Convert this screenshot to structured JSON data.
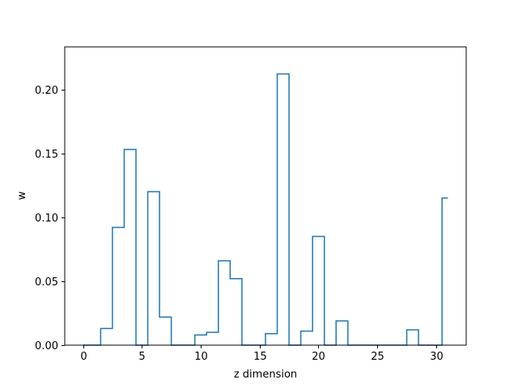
{
  "chart_data": {
    "type": "line",
    "style": "step-mid",
    "x": [
      0,
      1,
      2,
      3,
      4,
      5,
      6,
      7,
      8,
      9,
      10,
      11,
      12,
      13,
      14,
      15,
      16,
      17,
      18,
      19,
      20,
      21,
      22,
      23,
      24,
      25,
      26,
      27,
      28,
      29,
      30,
      31
    ],
    "series": [
      {
        "color": "#1f77b4",
        "values": [
          0.0,
          0.0,
          0.013,
          0.092,
          0.153,
          0.0,
          0.12,
          0.022,
          0.0,
          0.0,
          0.008,
          0.01,
          0.066,
          0.052,
          0.0,
          0.0,
          0.009,
          0.212,
          0.0,
          0.011,
          0.085,
          0.0,
          0.019,
          0.0,
          0.0,
          0.0,
          0.0,
          0.0,
          0.012,
          0.0,
          0.0,
          0.115
        ]
      }
    ],
    "xlabel": "z dimension",
    "ylabel": "w",
    "xlim": [
      -1.55,
      32.55
    ],
    "ylim": [
      0.0,
      0.2332
    ],
    "xticks": [
      0,
      5,
      10,
      15,
      20,
      25,
      30
    ],
    "yticks": [
      0.0,
      0.05,
      0.1,
      0.15,
      0.2
    ],
    "xtick_labels": [
      "0",
      "5",
      "10",
      "15",
      "20",
      "25",
      "30"
    ],
    "ytick_labels": [
      "0.00",
      "0.05",
      "0.10",
      "0.15",
      "0.20"
    ],
    "grid": false
  }
}
